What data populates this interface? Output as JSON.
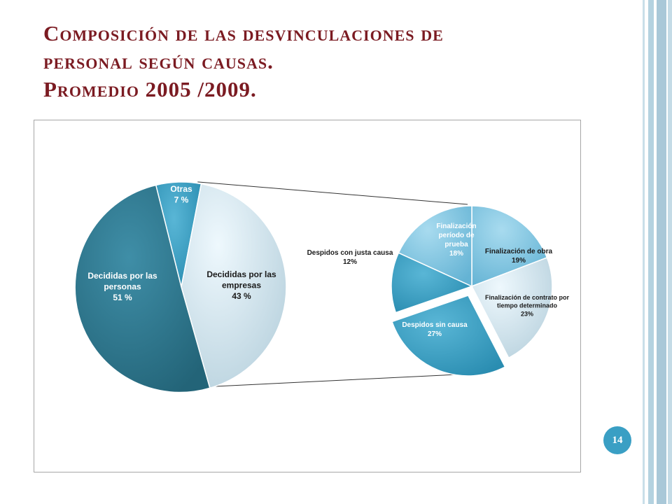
{
  "slide": {
    "title_line1": "Composición de las desvinculaciones de",
    "title_line2": "personal según causas.",
    "title_line3": "Promedio 2005 /2009.",
    "page_number": "14"
  },
  "colors": {
    "title": "#7b1b22",
    "accent": "#3a9fc4",
    "dark_teal": "#2f7a92",
    "mid_teal": "#3aa0c2",
    "light_blue": "#d6edf7"
  },
  "chart_data": [
    {
      "type": "pie",
      "title": "",
      "slices": [
        {
          "label": "Otras",
          "value_label": "7 %",
          "value": 7
        },
        {
          "label": "Decididas por las empresas",
          "label_lines": [
            "Decididas por las",
            "empresas"
          ],
          "value_label": "43 %",
          "value": 43
        },
        {
          "label": "Decididas por las personas",
          "label_lines": [
            "Decididas por las",
            "personas"
          ],
          "value_label": "51 %",
          "value": 51
        }
      ]
    },
    {
      "type": "pie",
      "title": "",
      "slices": [
        {
          "label": "Finalización de obra",
          "label_lines": [
            "Finalización de obra"
          ],
          "value_label": "19%",
          "value": 19
        },
        {
          "label": "Finalización de contrato por tiempo determinado",
          "label_lines": [
            "Finalización de contrato por",
            "tiempo determinado"
          ],
          "value_label": "23%",
          "value": 23
        },
        {
          "label": "Despidos sin causa",
          "label_lines": [
            "Despidos sin causa"
          ],
          "value_label": "27%",
          "value": 27
        },
        {
          "label": "Despidos con justa causa",
          "label_lines": [
            "Despidos con justa causa"
          ],
          "value_label": "12%",
          "value": 12
        },
        {
          "label": "Finalización período de prueba",
          "label_lines": [
            "Finalización",
            "período de",
            "prueba"
          ],
          "value_label": "18%",
          "value": 18
        }
      ]
    }
  ]
}
